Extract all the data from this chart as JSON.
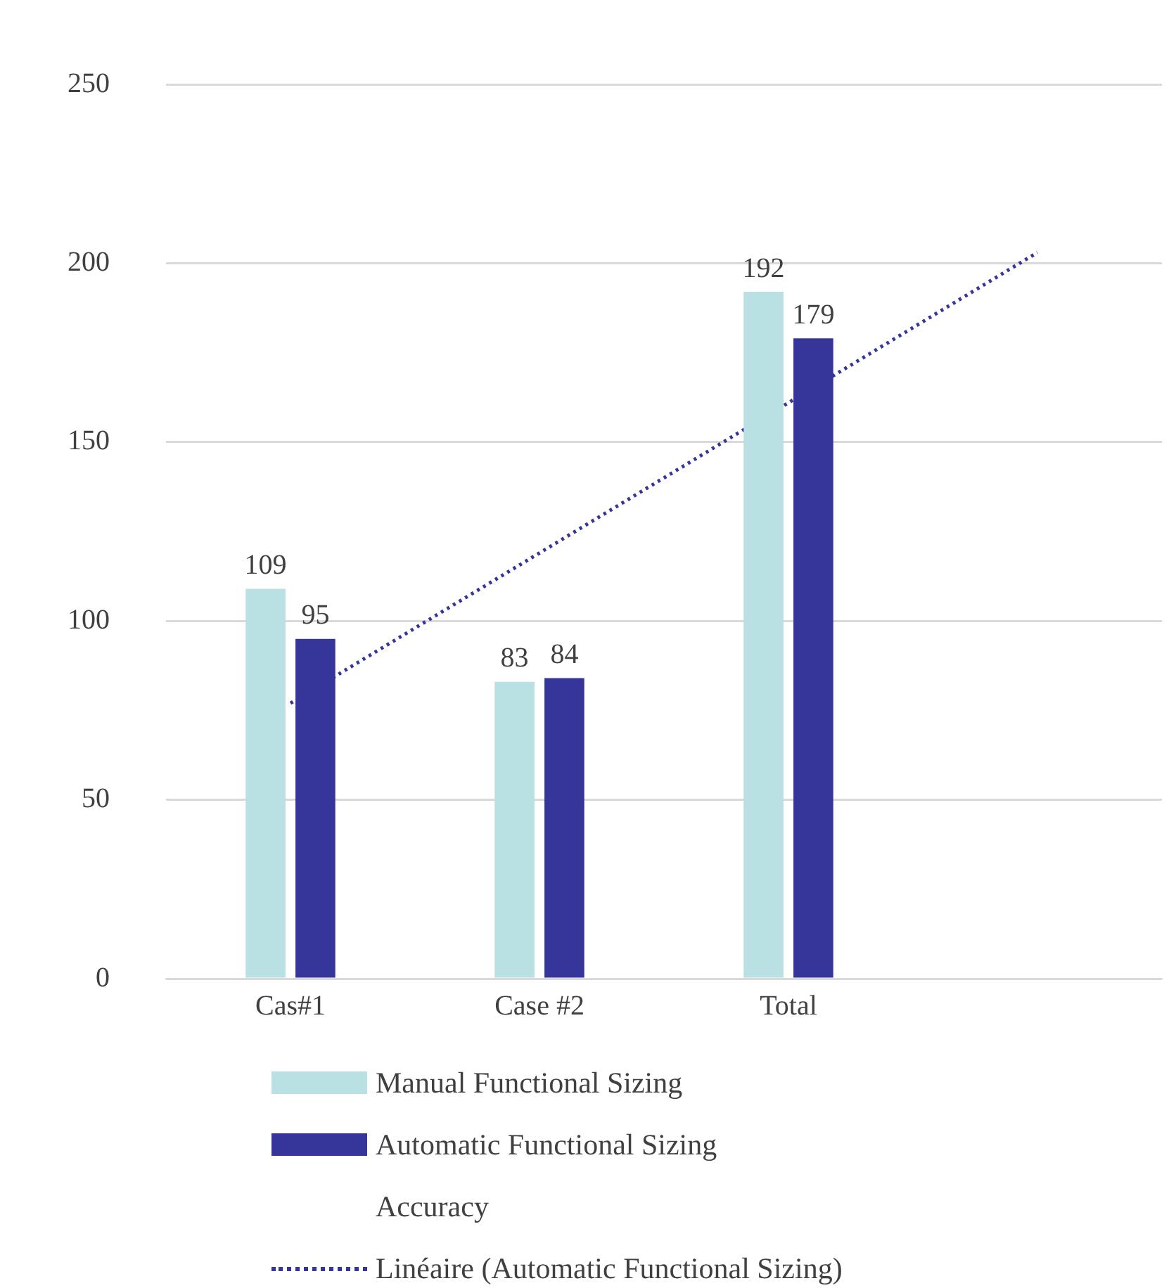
{
  "chart_data": {
    "type": "bar",
    "categories": [
      "Cas#1",
      "Case #2",
      "Total",
      null
    ],
    "series": [
      {
        "name": "Manual Functional Sizing",
        "color": "#b9e0e2",
        "values": [
          109,
          83,
          192,
          null
        ],
        "value_labels": [
          "109",
          "83",
          "192",
          null
        ]
      },
      {
        "name": "Automatic Functional Sizing",
        "color": "#35359a",
        "values": [
          95,
          84,
          179,
          null
        ],
        "value_labels": [
          "95",
          "84",
          "179",
          null
        ]
      },
      {
        "name": "Accuracy",
        "type": "line",
        "values": [
          null,
          null,
          null,
          null
        ]
      },
      {
        "name": "Linéaire (Automatic Functional Sizing)",
        "type": "line",
        "color": "#35359a",
        "line_style": "dotted",
        "values": [
          77,
          119,
          161,
          203
        ]
      }
    ],
    "ylim": [
      0,
      250
    ],
    "yticks": [
      0,
      50,
      100,
      150,
      200,
      250
    ],
    "grid": "y",
    "legend": "bottom",
    "marker": "none"
  }
}
